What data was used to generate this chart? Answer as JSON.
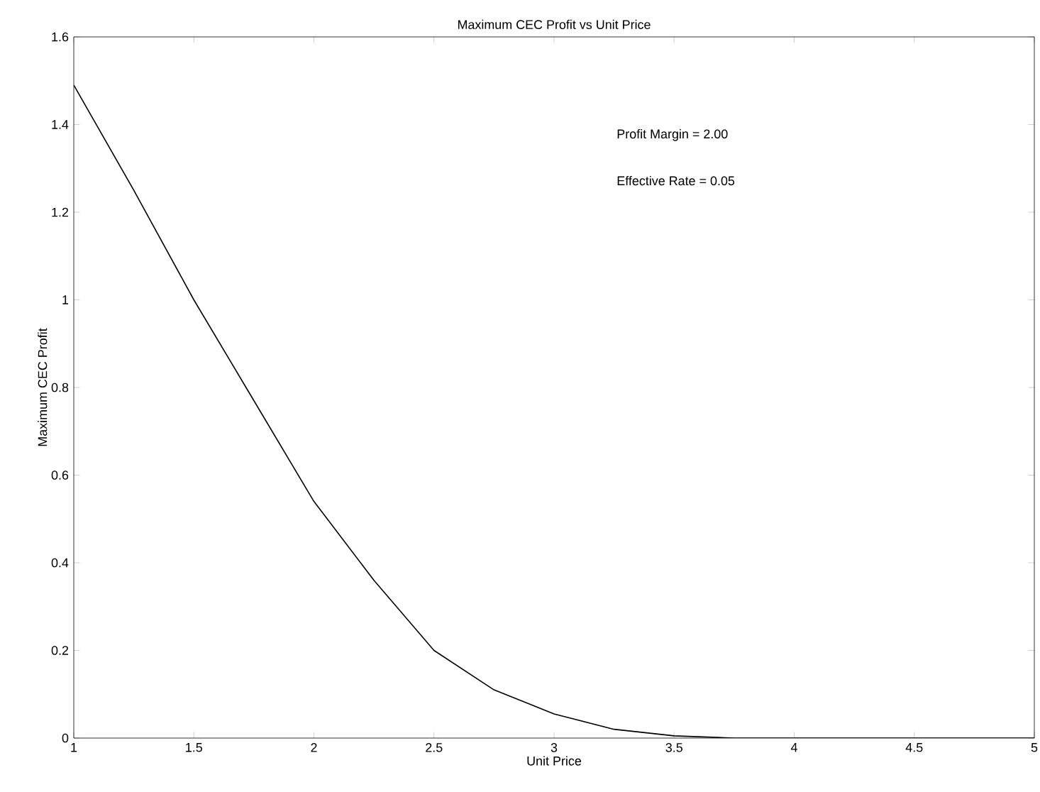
{
  "chart_data": {
    "type": "line",
    "title": "Maximum CEC Profit vs Unit Price",
    "xlabel": "Unit Price",
    "ylabel": "Maximum CEC Profit",
    "annotations": [
      "Profit Margin = 2.00",
      "Effective Rate = 0.05"
    ],
    "xlim": [
      1,
      5
    ],
    "ylim": [
      0,
      1.6
    ],
    "xticks": [
      1,
      1.5,
      2,
      2.5,
      3,
      3.5,
      4,
      4.5,
      5
    ],
    "yticks": [
      0,
      0.2,
      0.4,
      0.6,
      0.8,
      1,
      1.2,
      1.4,
      1.6
    ],
    "series": [
      {
        "color": "#000000",
        "x": [
          1,
          1.25,
          1.5,
          1.75,
          2,
          2.25,
          2.5,
          2.75,
          3,
          3.25,
          3.5,
          3.75,
          4,
          4.5,
          5
        ],
        "values": [
          1.49,
          1.25,
          1.0,
          0.77,
          0.54,
          0.36,
          0.2,
          0.11,
          0.055,
          0.02,
          0.005,
          0,
          0,
          0,
          0
        ]
      }
    ]
  }
}
